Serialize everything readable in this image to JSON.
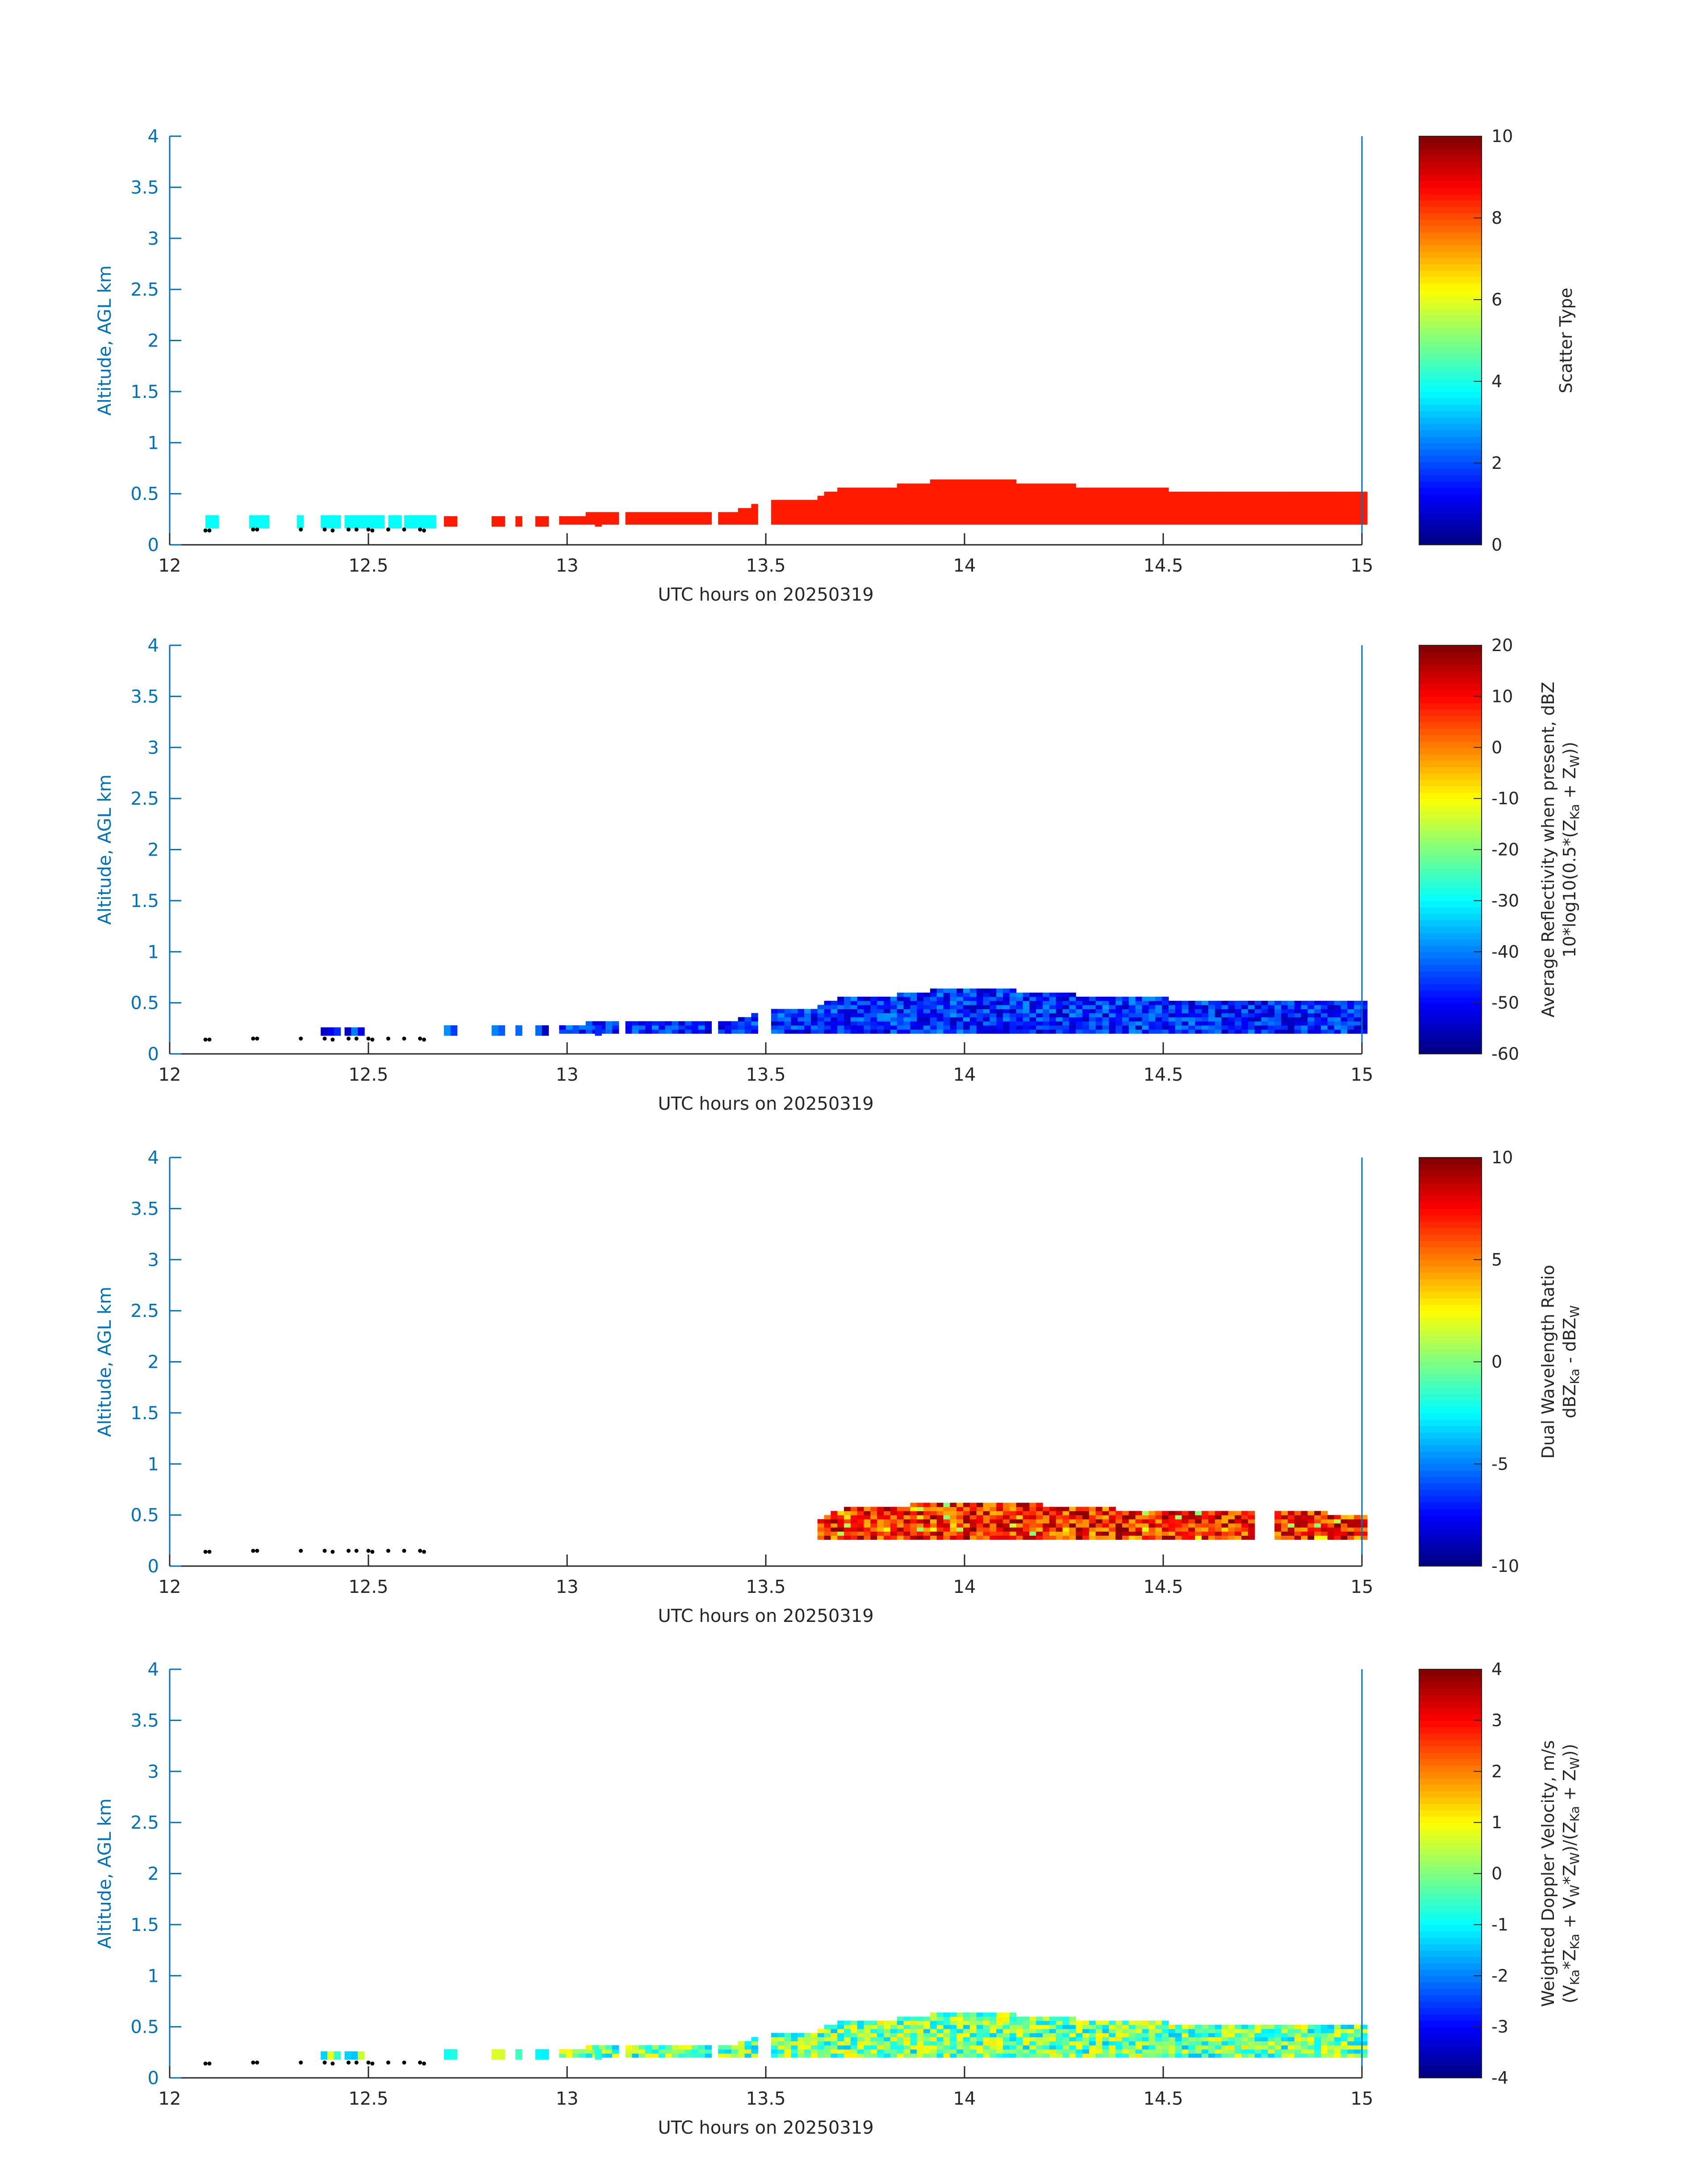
{
  "chart_data": [
    {
      "type": "heatmap",
      "panel": "scatter-type",
      "xlabel": "UTC hours on 20250319",
      "ylabel": "Altitude, AGL km",
      "xlim": [
        12,
        15
      ],
      "ylim": [
        0,
        4
      ],
      "xticks": [
        "12",
        "12.5",
        "13",
        "13.5",
        "14",
        "14.5",
        "15"
      ],
      "yticks": [
        "0",
        "0.5",
        "1",
        "1.5",
        "2",
        "2.5",
        "3",
        "3.5",
        "4"
      ],
      "colorbar": {
        "label": "Scatter Type",
        "label_sub": "",
        "clim": [
          0,
          10
        ],
        "ticks": [
          "0",
          "2",
          "4",
          "6",
          "8",
          "10"
        ],
        "colormap": "jet"
      },
      "cloud_top_km": [
        [
          12.69,
          0.28
        ],
        [
          12.83,
          0.28
        ],
        [
          12.93,
          0.28
        ],
        [
          13.0,
          0.25
        ],
        [
          13.1,
          0.32
        ],
        [
          13.15,
          0.3
        ],
        [
          13.4,
          0.3
        ],
        [
          13.5,
          0.4
        ],
        [
          13.6,
          0.42
        ],
        [
          13.7,
          0.55
        ],
        [
          13.8,
          0.55
        ],
        [
          13.9,
          0.6
        ],
        [
          14.05,
          0.62
        ],
        [
          14.3,
          0.55
        ],
        [
          14.5,
          0.52
        ],
        [
          14.7,
          0.5
        ],
        [
          14.8,
          0.52
        ],
        [
          15.0,
          0.48
        ]
      ],
      "cloud_base_km": 0.2,
      "cloud_value": 8.5,
      "early_segments": [
        [
          12.09,
          12.12
        ],
        [
          12.2,
          12.24
        ],
        [
          12.32,
          12.33
        ],
        [
          12.38,
          12.42
        ],
        [
          12.44,
          12.48
        ],
        [
          12.49,
          12.53
        ],
        [
          12.55,
          12.58
        ],
        [
          12.59,
          12.61
        ],
        [
          12.62,
          12.66
        ]
      ],
      "early_value": 3.8,
      "early_top_km": 0.29,
      "early_base_km": 0.16,
      "scattered_cells": [
        [
          12.69,
          12.71
        ],
        [
          12.81,
          12.83
        ],
        [
          12.87,
          12.88
        ],
        [
          12.92,
          12.94
        ],
        [
          13.07,
          13.08
        ]
      ],
      "surface_markers": [
        [
          12.09,
          0.14
        ],
        [
          12.1,
          0.14
        ],
        [
          12.21,
          0.15
        ],
        [
          12.22,
          0.15
        ],
        [
          12.33,
          0.15
        ],
        [
          12.39,
          0.15
        ],
        [
          12.41,
          0.14
        ],
        [
          12.45,
          0.15
        ],
        [
          12.47,
          0.15
        ],
        [
          12.5,
          0.15
        ],
        [
          12.51,
          0.14
        ],
        [
          12.55,
          0.15
        ],
        [
          12.59,
          0.15
        ],
        [
          12.63,
          0.15
        ],
        [
          12.64,
          0.14
        ]
      ]
    },
    {
      "type": "heatmap",
      "panel": "reflectivity",
      "xlabel": "UTC hours on 20250319",
      "ylabel": "Altitude, AGL km",
      "xlim": [
        12,
        15
      ],
      "ylim": [
        0,
        4
      ],
      "xticks": [
        "12",
        "12.5",
        "13",
        "13.5",
        "14",
        "14.5",
        "15"
      ],
      "yticks": [
        "0",
        "0.5",
        "1",
        "1.5",
        "2",
        "2.5",
        "3",
        "3.5",
        "4"
      ],
      "colorbar": {
        "label": "Average Reflectivity when present, dBZ",
        "label2_parts": [
          "10*log10(0.5*(Z",
          "Ka",
          " + Z",
          "W",
          "))"
        ],
        "clim": [
          -60,
          20
        ],
        "ticks": [
          "-60",
          "-50",
          "-40",
          "-30",
          "-20",
          "-10",
          "0",
          "10",
          "20"
        ],
        "colormap": "jet"
      },
      "value_range": [
        -56,
        -38
      ]
    },
    {
      "type": "heatmap",
      "panel": "dwr",
      "xlabel": "UTC hours on 20250319",
      "ylabel": "Altitude, AGL km",
      "xlim": [
        12,
        15
      ],
      "ylim": [
        0,
        4
      ],
      "xticks": [
        "12",
        "12.5",
        "13",
        "13.5",
        "14",
        "14.5",
        "15"
      ],
      "yticks": [
        "0",
        "0.5",
        "1",
        "1.5",
        "2",
        "2.5",
        "3",
        "3.5",
        "4"
      ],
      "colorbar": {
        "label": "Dual Wavelength Ratio",
        "label2_parts": [
          "dBZ",
          "Ka",
          " - dBZ",
          "W",
          ""
        ],
        "clim": [
          -10,
          10
        ],
        "ticks": [
          "-10",
          "-5",
          "0",
          "5",
          "10"
        ],
        "colormap": "jet"
      },
      "extent_x": [
        13.63,
        15.0
      ],
      "value_range": [
        4,
        10
      ]
    },
    {
      "type": "heatmap",
      "panel": "doppler",
      "xlabel": "UTC hours on 20250319",
      "ylabel": "Altitude, AGL km",
      "xlim": [
        12,
        15
      ],
      "ylim": [
        0,
        4
      ],
      "xticks": [
        "12",
        "12.5",
        "13",
        "13.5",
        "14",
        "14.5",
        "15"
      ],
      "yticks": [
        "0",
        "0.5",
        "1",
        "1.5",
        "2",
        "2.5",
        "3",
        "3.5",
        "4"
      ],
      "colorbar": {
        "label": "Weighted Doppler Velocity, m/s",
        "label2_parts": [
          "(V",
          "Ka",
          "*Z",
          "Ka",
          " + V",
          "W",
          "*Z",
          "W",
          ")/(Z",
          "Ka",
          " + Z",
          "W",
          "))"
        ],
        "clim": [
          -4,
          4
        ],
        "ticks": [
          "-4",
          "-3",
          "-2",
          "-1",
          "0",
          "1",
          "2",
          "3",
          "4"
        ],
        "colormap": "jet"
      },
      "value_range": [
        -1.5,
        1.2
      ]
    }
  ]
}
